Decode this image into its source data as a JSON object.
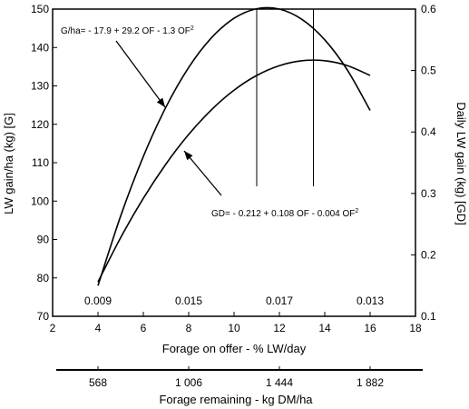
{
  "chart_data": {
    "type": "line",
    "x": [
      4,
      5,
      6,
      7,
      8,
      9,
      10,
      11,
      12,
      13,
      14,
      15,
      16
    ],
    "xlabel": "Forage on offer - % LW/day",
    "xlim": [
      2,
      18
    ],
    "x_ticks": [
      "2",
      "4",
      "6",
      "8",
      "10",
      "12",
      "14",
      "16",
      "18"
    ],
    "ylabel": "LW gain/ha (kg) [G]",
    "ylim": [
      70,
      150
    ],
    "y_ticks": [
      "70",
      "80",
      "90",
      "100",
      "110",
      "120",
      "130",
      "140",
      "150"
    ],
    "y2label": "Daily LW gain (kg) [GD]",
    "y2lim": [
      0.1,
      0.6
    ],
    "y2_ticks": [
      "0.1",
      "0.2",
      "0.3",
      "0.4",
      "0.5",
      "0.6"
    ],
    "series": [
      {
        "axis": "left",
        "values": [
          78.0,
          96.1,
          111.6,
          124.5,
          134.8,
          142.5,
          147.6,
          150.1,
          150.0,
          147.3,
          142.0,
          134.1,
          123.6
        ],
        "equation": {
          "prefix": "G/ha= - 17.9 + 29.2 OF - 1.3 OF",
          "sup": "2"
        }
      },
      {
        "axis": "right",
        "values": [
          0.156,
          0.228,
          0.292,
          0.348,
          0.396,
          0.436,
          0.468,
          0.492,
          0.508,
          0.516,
          0.516,
          0.508,
          0.492
        ],
        "equation": {
          "prefix": "GD= - 0.212 + 0.108 OF - 0.004 OF",
          "sup": "2"
        }
      }
    ],
    "vertical_lines_x": [
      11,
      13.5
    ],
    "bottom_annotations": [
      {
        "x": 4,
        "text": "0.009"
      },
      {
        "x": 8,
        "text": "0.015"
      },
      {
        "x": 12,
        "text": "0.017"
      },
      {
        "x": 16,
        "text": "0.013"
      }
    ],
    "secondary_x_axis": {
      "label": "Forage remaining - kg DM/ha",
      "ticks": [
        "568",
        "1 006",
        "1 444",
        "1 882"
      ],
      "tick_x": [
        4,
        8,
        12,
        16
      ]
    },
    "grid": false,
    "legend": "none"
  }
}
